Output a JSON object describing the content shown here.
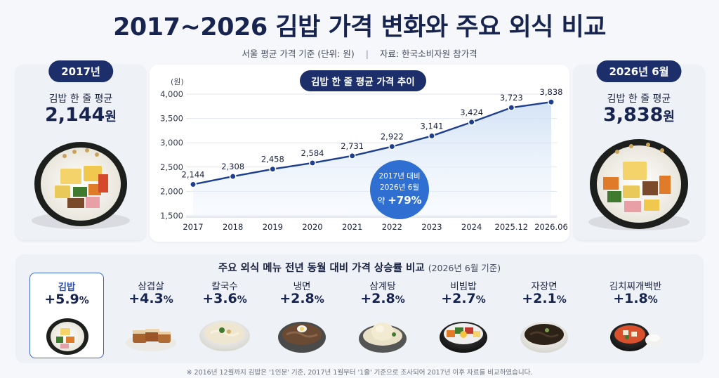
{
  "title": "2017~2026 김밥 가격 변화와 주요 외식 비교",
  "subtitle": {
    "basis": "서울 평균 가격 기준 (단위: 원)",
    "separator": "|",
    "source": "자료: 한국소비자원 참가격"
  },
  "left_card": {
    "pill": "2017년",
    "label": "김밥 한 줄 평균",
    "price": "2,144",
    "unit": "원"
  },
  "right_card": {
    "pill": "2026년 6월",
    "label": "김밥 한 줄 평균",
    "price": "3,838",
    "unit": "원"
  },
  "chart_pill": "김밥 한 줄 평균 가격 추이",
  "chart_data": {
    "type": "line",
    "title": "김밥 한 줄 평균 가격 추이",
    "ylabel": "(원)",
    "categories": [
      "2017",
      "2018",
      "2019",
      "2020",
      "2021",
      "2022",
      "2023",
      "2024",
      "2025.12",
      "2026.06"
    ],
    "values": [
      2144,
      2308,
      2458,
      2584,
      2731,
      2922,
      3141,
      3424,
      3723,
      3838
    ],
    "value_labels": [
      "2,144",
      "2,308",
      "2,458",
      "2,584",
      "2,731",
      "2,922",
      "3,141",
      "3,424",
      "3,723",
      "3,838"
    ],
    "yticks": [
      "1,500",
      "2,000",
      "2,500",
      "3,000",
      "3,500",
      "4,000"
    ],
    "ylim": [
      1500,
      4000
    ],
    "grid": true,
    "color": "#1d3f8f",
    "callout": {
      "line1": "2017년 대비",
      "line2": "2026년 6월",
      "line3_prefix": "약 ",
      "line3_value": "+79%",
      "color": "#2f6fd1"
    }
  },
  "bottom": {
    "title": "주요 외식 메뉴 전년 동월 대비 가격 상승률 비교",
    "title_sub": "(2026년 6월 기준)",
    "items": [
      {
        "name": "김밥",
        "rate": "+5.9",
        "unit": "%",
        "icon": "kimbap-icon",
        "highlight": true
      },
      {
        "name": "삼겹살",
        "rate": "+4.3",
        "unit": "%",
        "icon": "samgyeopsal-icon"
      },
      {
        "name": "칼국수",
        "rate": "+3.6",
        "unit": "%",
        "icon": "kalguksu-icon"
      },
      {
        "name": "냉면",
        "rate": "+2.8",
        "unit": "%",
        "icon": "naengmyeon-icon"
      },
      {
        "name": "삼계탕",
        "rate": "+2.8",
        "unit": "%",
        "icon": "samgyetang-icon"
      },
      {
        "name": "비빔밥",
        "rate": "+2.7",
        "unit": "%",
        "icon": "bibimbap-icon"
      },
      {
        "name": "자장면",
        "rate": "+2.1",
        "unit": "%",
        "icon": "jajangmyeon-icon"
      },
      {
        "name": "김치찌개백반",
        "rate": "+1.8",
        "unit": "%",
        "icon": "kimchi-jjigae-icon"
      }
    ]
  },
  "footnote": "※ 2016년 12월까지 김밥은 '1인분' 기준, 2017년 1월부터 '1줄' 기준으로 조사되어 2017년 이후 자료를 비교하였습니다."
}
